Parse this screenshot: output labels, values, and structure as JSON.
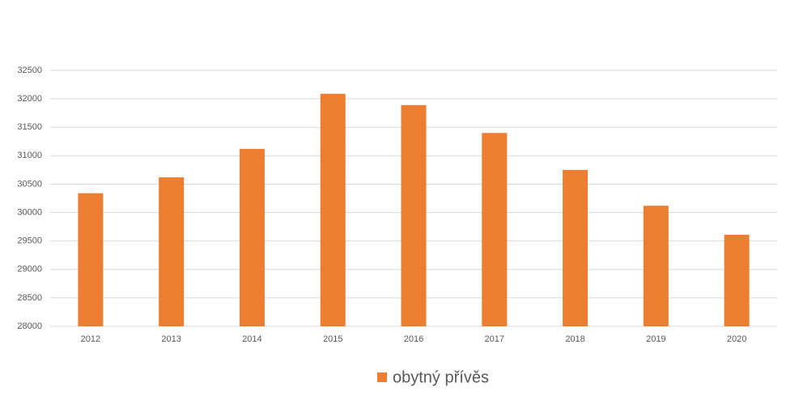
{
  "chart_data": {
    "type": "bar",
    "categories": [
      "2012",
      "2013",
      "2014",
      "2015",
      "2016",
      "2017",
      "2018",
      "2019",
      "2020"
    ],
    "series": [
      {
        "name": "obytný přívěs",
        "color": "#ed7d31",
        "values": [
          30340,
          30620,
          31120,
          32090,
          31890,
          31400,
          30750,
          30120,
          29610
        ]
      }
    ],
    "ylim": [
      28000,
      32500
    ],
    "yticks": [
      28000,
      28500,
      29000,
      29500,
      30000,
      30500,
      31000,
      31500,
      32000,
      32500
    ],
    "grid": true,
    "legend": "bottom"
  }
}
